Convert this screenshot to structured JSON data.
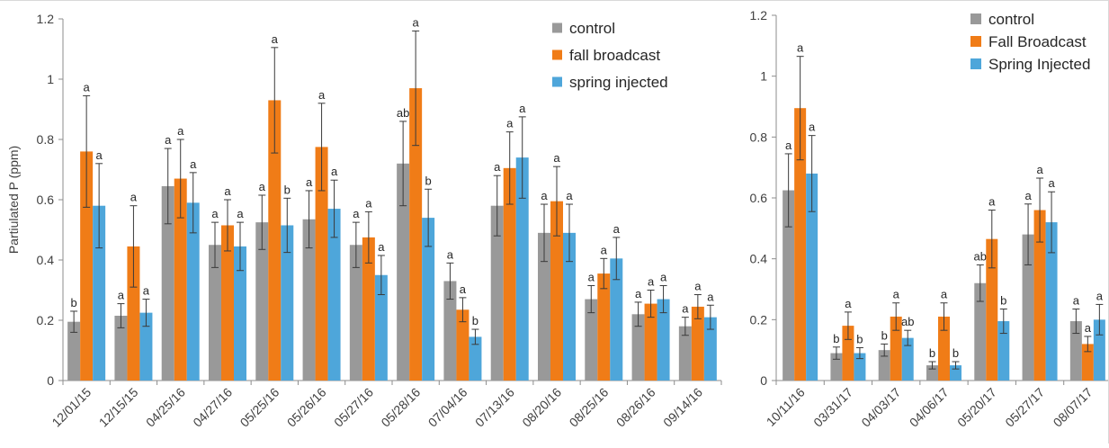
{
  "chart_data": [
    {
      "type": "bar",
      "ylabel": "Partiulated P (ppm)",
      "ylim": [
        0,
        1.2
      ],
      "yticks": [
        "0",
        "0.2",
        "0.4",
        "0.6",
        "0.8",
        "1",
        "1.2"
      ],
      "legend_position": "top-right",
      "categories": [
        "12/01/15",
        "12/15/15",
        "04/25/16",
        "04/27/16",
        "05/25/16",
        "05/26/16",
        "05/27/16",
        "05/28/16",
        "07/04/16",
        "07/13/16",
        "08/20/16",
        "08/25/16",
        "08/26/16",
        "09/14/16"
      ],
      "series": [
        {
          "name": "control",
          "color": "#999999",
          "values": [
            0.195,
            0.215,
            0.645,
            0.45,
            0.525,
            0.535,
            0.45,
            0.72,
            0.33,
            0.58,
            0.49,
            0.27,
            0.22,
            0.18
          ],
          "errors": [
            0.035,
            0.04,
            0.125,
            0.075,
            0.09,
            0.095,
            0.075,
            0.14,
            0.06,
            0.1,
            0.095,
            0.045,
            0.04,
            0.03
          ],
          "letters": [
            "b",
            "a",
            "a",
            "a",
            "a",
            "a",
            "a",
            "ab",
            "a",
            "a",
            "a",
            "a",
            "a",
            "a"
          ]
        },
        {
          "name": "fall broadcast",
          "color": "#f07c17",
          "values": [
            0.76,
            0.445,
            0.67,
            0.515,
            0.93,
            0.775,
            0.475,
            0.97,
            0.235,
            0.705,
            0.595,
            0.355,
            0.255,
            0.245
          ],
          "errors": [
            0.185,
            0.135,
            0.13,
            0.085,
            0.175,
            0.145,
            0.085,
            0.19,
            0.04,
            0.12,
            0.115,
            0.05,
            0.045,
            0.04
          ],
          "letters": [
            "a",
            "a",
            "a",
            "a",
            "a",
            "a",
            "a",
            "a",
            "a",
            "a",
            "a",
            "a",
            "a",
            "a"
          ]
        },
        {
          "name": "spring injected",
          "color": "#4ea6da",
          "values": [
            0.58,
            0.225,
            0.59,
            0.445,
            0.515,
            0.57,
            0.35,
            0.54,
            0.145,
            0.74,
            0.49,
            0.405,
            0.27,
            0.21
          ],
          "errors": [
            0.14,
            0.045,
            0.1,
            0.08,
            0.09,
            0.095,
            0.065,
            0.095,
            0.025,
            0.135,
            0.095,
            0.07,
            0.045,
            0.04
          ],
          "letters": [
            "a",
            "a",
            "a",
            "a",
            "b",
            "a",
            "a",
            "b",
            "b",
            "a",
            "a",
            "a",
            "a",
            "a"
          ]
        }
      ]
    },
    {
      "type": "bar",
      "ylim": [
        0,
        1.2
      ],
      "yticks": [
        "0",
        "0.2",
        "0.4",
        "0.6",
        "0.8",
        "1",
        "1.2"
      ],
      "legend_position": "top-right",
      "categories": [
        "10/11/16",
        "03/31/17",
        "04/03/17",
        "04/06/17",
        "05/20/17",
        "05/27/17",
        "08/07/17"
      ],
      "series": [
        {
          "name": "control",
          "color": "#999999",
          "values": [
            0.625,
            0.09,
            0.1,
            0.05,
            0.32,
            0.48,
            0.195
          ],
          "errors": [
            0.12,
            0.02,
            0.02,
            0.012,
            0.06,
            0.1,
            0.04
          ],
          "letters": [
            "a",
            "b",
            "b",
            "b",
            "ab",
            "a",
            "a"
          ]
        },
        {
          "name": "Fall Broadcast",
          "color": "#f07c17",
          "values": [
            0.895,
            0.18,
            0.21,
            0.21,
            0.465,
            0.56,
            0.12
          ],
          "errors": [
            0.17,
            0.045,
            0.045,
            0.045,
            0.095,
            0.105,
            0.025
          ],
          "letters": [
            "a",
            "a",
            "a",
            "a",
            "a",
            "a",
            "a"
          ]
        },
        {
          "name": "Spring Injected",
          "color": "#4ea6da",
          "values": [
            0.68,
            0.09,
            0.14,
            0.05,
            0.195,
            0.52,
            0.2
          ],
          "errors": [
            0.125,
            0.018,
            0.025,
            0.012,
            0.04,
            0.1,
            0.05
          ],
          "letters": [
            "a",
            "b",
            "ab",
            "b",
            "b",
            "a",
            "a"
          ]
        }
      ]
    }
  ]
}
